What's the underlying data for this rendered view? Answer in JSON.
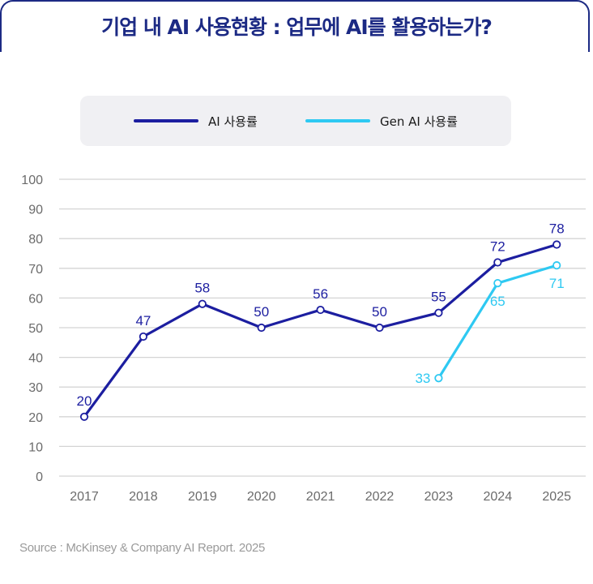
{
  "header": {
    "title": "기업 내 AI 사용현황 : 업무에 AI를 활용하는가?"
  },
  "footer": {
    "source": "Source : McKinsey & Company AI Report. 2025"
  },
  "colors": {
    "ai": "#1c1ea0",
    "gen_ai": "#2ec9f2",
    "grid": "#d4d4d4",
    "tick": "#6b6b6b",
    "title": "#1c2a84"
  },
  "chart_data": {
    "type": "line",
    "categories": [
      "2017",
      "2018",
      "2019",
      "2020",
      "2021",
      "2022",
      "2023",
      "2024",
      "2025"
    ],
    "ylim": [
      0,
      100
    ],
    "yticks": [
      0,
      10,
      20,
      30,
      40,
      50,
      60,
      70,
      80,
      90,
      100
    ],
    "grid": true,
    "legend_position": "top",
    "series": [
      {
        "name": "AI 사용률",
        "values": [
          20,
          47,
          58,
          50,
          56,
          50,
          55,
          72,
          78
        ]
      },
      {
        "name": "Gen AI 사용률",
        "values": [
          null,
          null,
          null,
          null,
          null,
          null,
          33,
          65,
          71
        ]
      }
    ]
  }
}
